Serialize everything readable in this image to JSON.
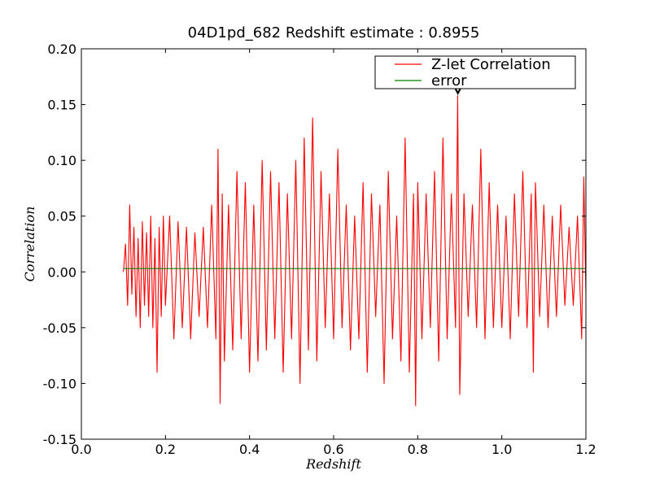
{
  "chart_data": {
    "type": "line",
    "title": "04D1pd_682 Redshift estimate : 0.8955",
    "xlabel": "Redshift",
    "ylabel": "Correlation",
    "xlim": [
      0.0,
      1.2
    ],
    "ylim": [
      -0.15,
      0.2
    ],
    "x_ticks": [
      {
        "value": 0.0,
        "label": "0.0"
      },
      {
        "value": 0.2,
        "label": "0.2"
      },
      {
        "value": 0.4,
        "label": "0.4"
      },
      {
        "value": 0.6,
        "label": "0.6"
      },
      {
        "value": 0.8,
        "label": "0.8"
      },
      {
        "value": 1.0,
        "label": "1.0"
      },
      {
        "value": 1.2,
        "label": "1.2"
      }
    ],
    "y_ticks": [
      {
        "value": 0.2,
        "label": "0.20"
      },
      {
        "value": 0.15,
        "label": "0.15"
      },
      {
        "value": 0.1,
        "label": "0.10"
      },
      {
        "value": 0.05,
        "label": "0.05"
      },
      {
        "value": 0.0,
        "label": "0.00"
      },
      {
        "value": -0.05,
        "label": "-0.05"
      },
      {
        "value": -0.1,
        "label": "-0.10"
      },
      {
        "value": -0.15,
        "label": "-0.15"
      }
    ],
    "grid": false,
    "legend_position": "top-right",
    "series": [
      {
        "name": "Z-let Correlation",
        "color": "#ff0000",
        "x": [
          0.1,
          0.105,
          0.11,
          0.115,
          0.12,
          0.125,
          0.13,
          0.135,
          0.14,
          0.145,
          0.15,
          0.155,
          0.16,
          0.165,
          0.17,
          0.175,
          0.18,
          0.185,
          0.19,
          0.195,
          0.2,
          0.21,
          0.22,
          0.23,
          0.24,
          0.25,
          0.26,
          0.27,
          0.28,
          0.29,
          0.3,
          0.31,
          0.32,
          0.325,
          0.33,
          0.335,
          0.34,
          0.35,
          0.36,
          0.37,
          0.38,
          0.39,
          0.4,
          0.41,
          0.42,
          0.43,
          0.44,
          0.45,
          0.46,
          0.47,
          0.48,
          0.49,
          0.5,
          0.51,
          0.52,
          0.53,
          0.54,
          0.55,
          0.56,
          0.57,
          0.58,
          0.59,
          0.6,
          0.61,
          0.62,
          0.63,
          0.64,
          0.65,
          0.66,
          0.67,
          0.68,
          0.69,
          0.7,
          0.71,
          0.72,
          0.73,
          0.74,
          0.75,
          0.76,
          0.77,
          0.78,
          0.79,
          0.795,
          0.8,
          0.81,
          0.82,
          0.83,
          0.84,
          0.85,
          0.86,
          0.87,
          0.88,
          0.89,
          0.895,
          0.9,
          0.91,
          0.92,
          0.93,
          0.94,
          0.95,
          0.96,
          0.97,
          0.98,
          0.99,
          1.0,
          1.01,
          1.02,
          1.03,
          1.04,
          1.05,
          1.06,
          1.07,
          1.075,
          1.08,
          1.09,
          1.1,
          1.11,
          1.12,
          1.13,
          1.14,
          1.15,
          1.16,
          1.17,
          1.18,
          1.19,
          1.195,
          1.2
        ],
        "y": [
          0.0,
          0.025,
          -0.03,
          0.06,
          -0.02,
          0.04,
          -0.04,
          0.03,
          -0.05,
          0.045,
          -0.03,
          0.035,
          -0.04,
          0.05,
          -0.05,
          0.03,
          -0.09,
          0.04,
          -0.04,
          0.05,
          -0.03,
          0.05,
          -0.06,
          0.045,
          -0.05,
          0.04,
          -0.06,
          0.035,
          -0.04,
          0.04,
          -0.05,
          0.06,
          -0.06,
          0.11,
          -0.118,
          0.07,
          -0.08,
          0.06,
          -0.07,
          0.09,
          -0.06,
          0.08,
          -0.09,
          0.06,
          -0.08,
          0.1,
          -0.07,
          0.09,
          -0.06,
          0.08,
          -0.09,
          0.07,
          -0.06,
          0.1,
          -0.1,
          0.12,
          -0.07,
          0.138,
          -0.08,
          0.09,
          -0.05,
          0.07,
          -0.06,
          0.11,
          -0.05,
          0.06,
          -0.07,
          0.05,
          -0.06,
          0.08,
          -0.09,
          0.07,
          -0.04,
          0.06,
          -0.1,
          0.09,
          -0.06,
          0.05,
          -0.08,
          0.12,
          -0.09,
          0.07,
          -0.12,
          0.08,
          -0.06,
          0.07,
          -0.05,
          0.09,
          -0.08,
          0.12,
          -0.06,
          0.07,
          -0.05,
          0.158,
          -0.11,
          0.07,
          -0.04,
          0.06,
          -0.05,
          0.11,
          -0.06,
          0.08,
          -0.05,
          0.06,
          -0.05,
          0.05,
          -0.06,
          0.07,
          -0.04,
          0.09,
          -0.05,
          0.07,
          -0.09,
          0.08,
          -0.04,
          0.06,
          -0.05,
          0.05,
          -0.04,
          0.06,
          -0.03,
          0.04,
          -0.03,
          0.05,
          -0.06,
          0.085,
          -0.02
        ]
      },
      {
        "name": "error",
        "color": "#008000",
        "x": [
          0.1,
          1.2
        ],
        "y": [
          0.003,
          0.003
        ]
      }
    ],
    "annotations": [
      {
        "type": "marker",
        "shape": "triangle-down",
        "x": 0.8955,
        "y": 0.158
      }
    ]
  }
}
